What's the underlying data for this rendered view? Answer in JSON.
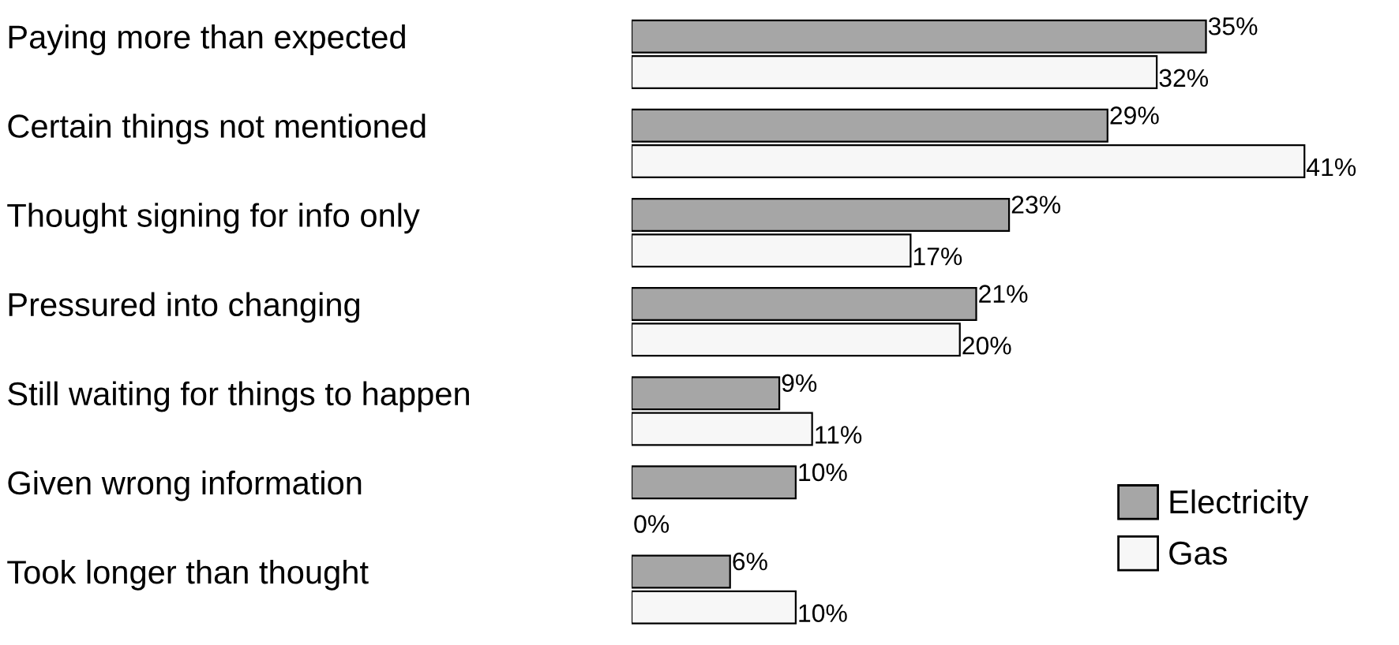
{
  "chart_data": {
    "type": "bar",
    "orientation": "horizontal",
    "categories": [
      "Paying more than expected",
      "Certain things not mentioned",
      "Thought signing for info only",
      "Pressured into changing",
      "Still waiting for things to happen",
      "Given wrong information",
      "Took longer than thought"
    ],
    "series": [
      {
        "name": "Electricity",
        "color": "#a6a6a6",
        "values": [
          35,
          29,
          23,
          21,
          9,
          10,
          6
        ],
        "value_labels": [
          "35%",
          "29%",
          "23%",
          "21%",
          "9%",
          "10%",
          "6%"
        ]
      },
      {
        "name": "Gas",
        "color": "#f7f7f7",
        "values": [
          32,
          41,
          17,
          20,
          11,
          0,
          10
        ],
        "value_labels": [
          "32%",
          "41%",
          "17%",
          "20%",
          "11%",
          "0%",
          "10%"
        ]
      }
    ],
    "legend": "bottom right",
    "grid": false
  }
}
